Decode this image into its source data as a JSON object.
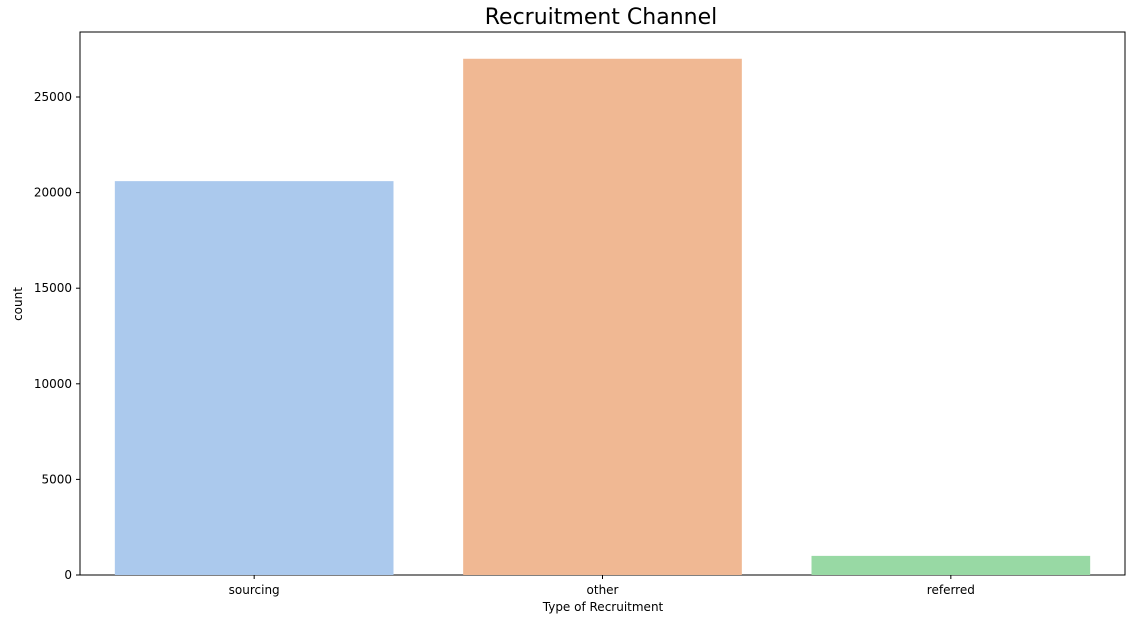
{
  "chart_data": {
    "type": "bar",
    "title": "Recruitment Channel",
    "xlabel": "Type of Recruitment",
    "ylabel": "count",
    "categories": [
      "sourcing",
      "other",
      "referred"
    ],
    "values": [
      20600,
      27000,
      1000
    ],
    "colors": [
      "#abc9ed",
      "#f0b893",
      "#98d9a4"
    ],
    "ylim": [
      0,
      28400
    ],
    "yticks": [
      0,
      5000,
      10000,
      15000,
      20000,
      25000
    ],
    "ytick_labels": [
      "0",
      "5000",
      "10000",
      "15000",
      "20000",
      "25000"
    ],
    "grid": false,
    "legend": "none"
  }
}
